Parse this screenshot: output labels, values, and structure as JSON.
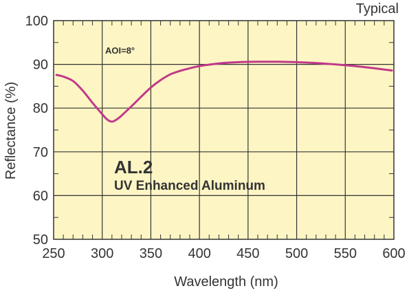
{
  "chart_data": {
    "type": "line",
    "corner_note": "Typical",
    "annotation": "AOI=8°",
    "product_code": "AL.2",
    "product_name": "UV Enhanced Aluminum",
    "xlabel": "Wavelength (nm)",
    "ylabel": "Reflectance (%)",
    "xlim": [
      250,
      600
    ],
    "ylim": [
      50,
      100
    ],
    "x_ticks": [
      250,
      300,
      350,
      400,
      450,
      500,
      550,
      600
    ],
    "y_ticks": [
      50,
      60,
      70,
      80,
      90,
      100
    ],
    "x_tick_labels": [
      "250",
      "300",
      "350",
      "400",
      "450",
      "500",
      "550",
      "600"
    ],
    "y_tick_labels": [
      "50",
      "60",
      "70",
      "80",
      "90",
      "100"
    ],
    "grid": true,
    "background": "#fdf5c4",
    "line_color": "#c0398a",
    "series": [
      {
        "x": [
          253,
          260,
          270,
          280,
          290,
          300,
          305,
          310,
          315,
          320,
          330,
          340,
          350,
          360,
          370,
          380,
          390,
          400,
          420,
          440,
          460,
          480,
          500,
          520,
          540,
          560,
          580,
          598
        ],
        "y": [
          87.6,
          87.2,
          86.2,
          84.0,
          81.2,
          78.6,
          77.4,
          76.9,
          77.4,
          78.3,
          80.4,
          82.6,
          84.7,
          86.4,
          87.7,
          88.5,
          89.1,
          89.6,
          90.2,
          90.5,
          90.6,
          90.6,
          90.5,
          90.3,
          90.0,
          89.6,
          89.1,
          88.6
        ]
      }
    ]
  }
}
